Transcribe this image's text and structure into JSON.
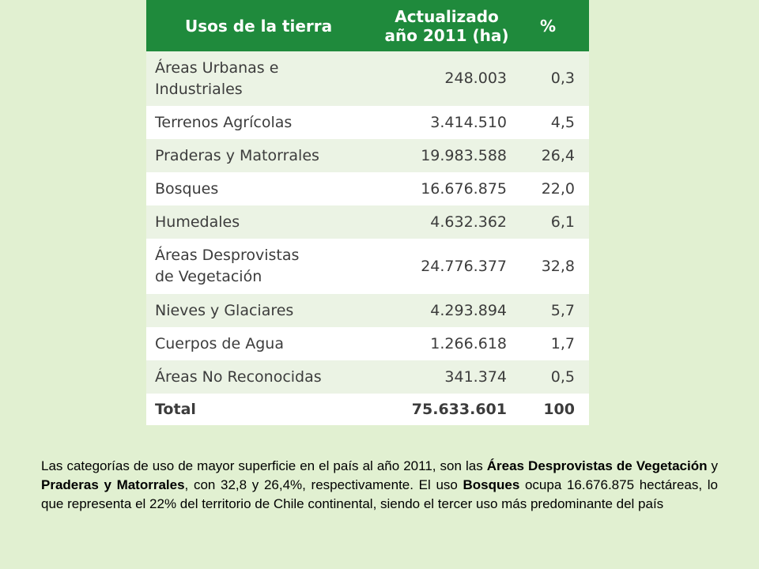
{
  "table": {
    "headers": {
      "uso": "Usos de la tierra",
      "area_line1": "Actualizado",
      "area_line2": "año 2011 (ha)",
      "pct": "%"
    },
    "rows": [
      {
        "uso_line1": "Áreas Urbanas e",
        "uso_line2": "Industriales",
        "area": "248.003",
        "pct": "0,3"
      },
      {
        "uso_line1": "Terrenos Agrícolas",
        "uso_line2": "",
        "area": "3.414.510",
        "pct": "4,5"
      },
      {
        "uso_line1": "Praderas y Matorrales",
        "uso_line2": "",
        "area": "19.983.588",
        "pct": "26,4"
      },
      {
        "uso_line1": "Bosques",
        "uso_line2": "",
        "area": "16.676.875",
        "pct": "22,0"
      },
      {
        "uso_line1": "Humedales",
        "uso_line2": "",
        "area": "4.632.362",
        "pct": "6,1"
      },
      {
        "uso_line1": "Áreas Desprovistas",
        "uso_line2": "de Vegetación",
        "area": "24.776.377",
        "pct": "32,8"
      },
      {
        "uso_line1": "Nieves y Glaciares",
        "uso_line2": "",
        "area": "4.293.894",
        "pct": "5,7"
      },
      {
        "uso_line1": "Cuerpos de Agua",
        "uso_line2": "",
        "area": "1.266.618",
        "pct": "1,7"
      },
      {
        "uso_line1": "Áreas No Reconocidas",
        "uso_line2": "",
        "area": "341.374",
        "pct": "0,5"
      }
    ],
    "total": {
      "label": "Total",
      "area": "75.633.601",
      "pct": "100"
    }
  },
  "caption": {
    "t1": "Las categorías de uso de mayor superficie en el país al año 2011, son las ",
    "b1": "Áreas Desprovistas de Vegetación",
    "t2": " y ",
    "b2": "Praderas y Matorrales",
    "t3": ", con 32,8 y 26,4%, respectivamente. El uso ",
    "b3": "Bosques",
    "t4": " ocupa 16.676.875 hectáreas, lo que representa el 22% del territorio de Chile continental, siendo el tercer uso más predominante del país"
  }
}
